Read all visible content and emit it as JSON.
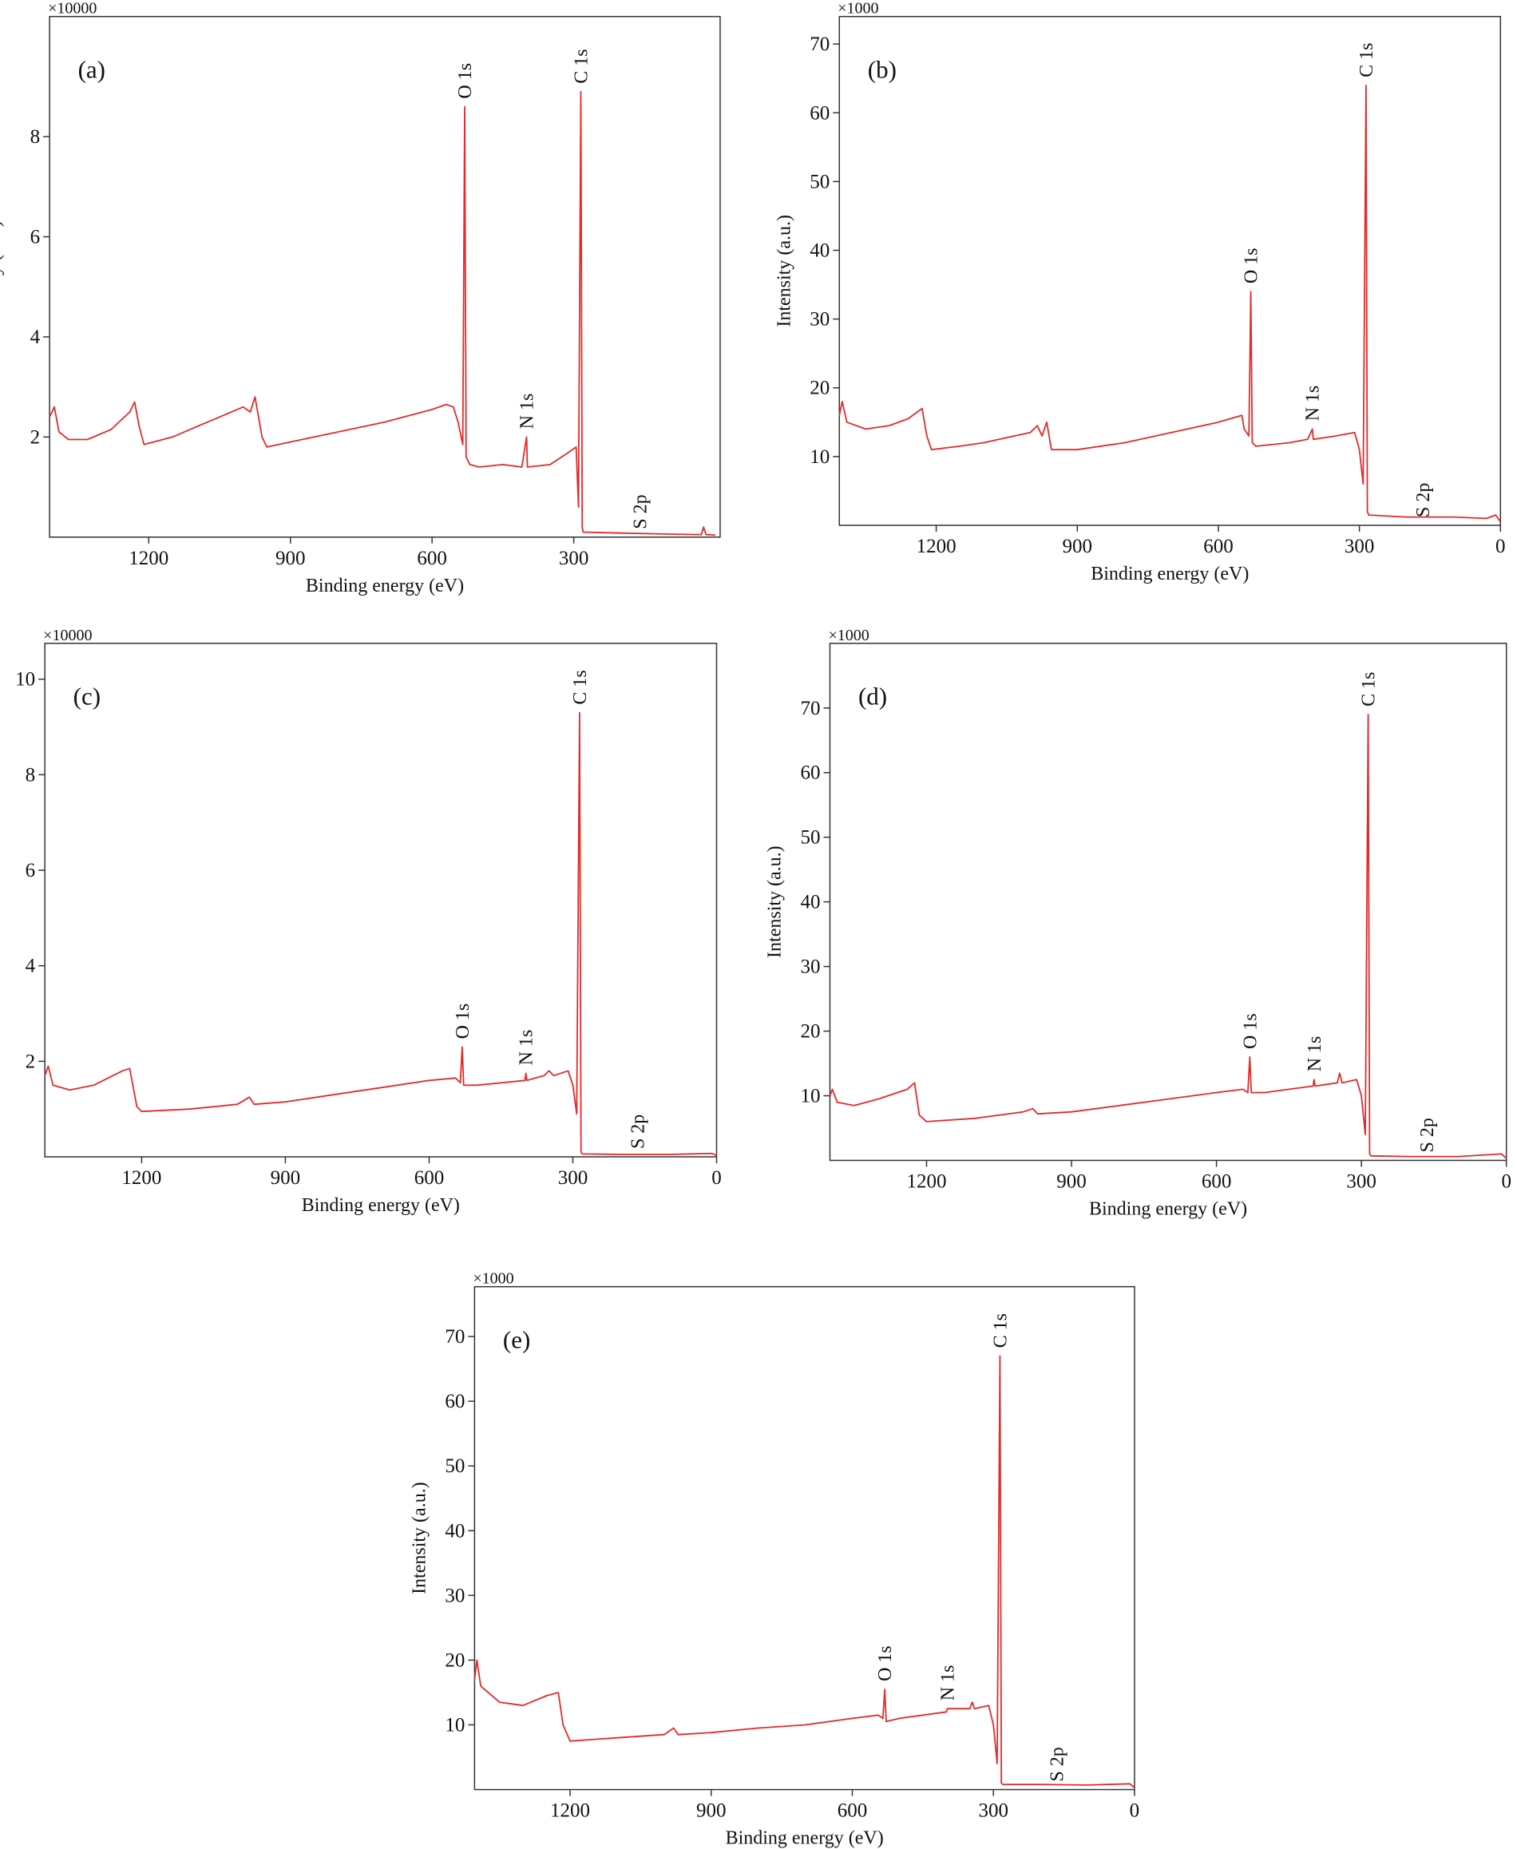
{
  "chart_data": [
    {
      "type": "line",
      "title": "(a)",
      "y_multiplier": "×10000",
      "xlabel": "Binding energy (eV)",
      "ylabel": "Intensity (a.u.)",
      "color": "#e42a2a",
      "xlim": [
        1410,
        -10
      ],
      "ylim": [
        0,
        10.4
      ],
      "xticks": [
        1200,
        900,
        600,
        300
      ],
      "yticks": [
        2,
        4,
        6,
        8
      ],
      "x": [
        1410,
        1400,
        1390,
        1370,
        1330,
        1280,
        1240,
        1230,
        1220,
        1210,
        1150,
        1100,
        1050,
        1000,
        985,
        975,
        960,
        950,
        900,
        800,
        700,
        600,
        570,
        555,
        545,
        535,
        531,
        528,
        520,
        500,
        450,
        410,
        400,
        398,
        350,
        310,
        295,
        290,
        285,
        282,
        280,
        200,
        100,
        30,
        25,
        20,
        0
      ],
      "values": [
        2.4,
        2.6,
        2.1,
        1.95,
        1.95,
        2.15,
        2.5,
        2.7,
        2.2,
        1.85,
        2.0,
        2.2,
        2.4,
        2.6,
        2.5,
        2.8,
        2.0,
        1.8,
        1.9,
        2.1,
        2.3,
        2.55,
        2.65,
        2.6,
        2.3,
        1.85,
        8.6,
        1.6,
        1.45,
        1.4,
        1.45,
        1.4,
        2.0,
        1.4,
        1.45,
        1.7,
        1.8,
        0.6,
        8.9,
        0.2,
        0.1,
        0.08,
        0.06,
        0.05,
        0.2,
        0.05,
        0.04
      ],
      "annotations": [
        {
          "text": "O 1s",
          "x": 531
        },
        {
          "text": "N 1s",
          "x": 400
        },
        {
          "text": "C 1s",
          "x": 285
        },
        {
          "text": "S 2p",
          "x": 160
        }
      ]
    },
    {
      "type": "line",
      "title": "(b)",
      "y_multiplier": "×1000",
      "xlabel": "Binding energy (eV)",
      "ylabel": "Intensity (a.u.)",
      "color": "#e42a2a",
      "xlim": [
        1406,
        0
      ],
      "ylim": [
        0,
        74
      ],
      "xticks": [
        1200,
        900,
        600,
        300,
        0
      ],
      "yticks": [
        10,
        20,
        30,
        40,
        50,
        60,
        70
      ],
      "x": [
        1406,
        1400,
        1390,
        1350,
        1300,
        1260,
        1230,
        1220,
        1210,
        1150,
        1100,
        1000,
        985,
        975,
        965,
        955,
        900,
        800,
        700,
        600,
        550,
        545,
        535,
        531,
        528,
        520,
        450,
        410,
        400,
        398,
        350,
        310,
        300,
        292,
        286,
        283,
        280,
        200,
        100,
        30,
        10,
        0
      ],
      "values": [
        16,
        18,
        15,
        14,
        14.5,
        15.5,
        17,
        13,
        11,
        11.5,
        12,
        13.5,
        14.5,
        13,
        15,
        11,
        11,
        12,
        13.5,
        15,
        16,
        14,
        13,
        34,
        12,
        11.5,
        12,
        12.5,
        14,
        12.5,
        13,
        13.5,
        11,
        6,
        64,
        2,
        1.5,
        1.2,
        1.2,
        1,
        1.5,
        0.5
      ],
      "annotations": [
        {
          "text": "O 1s",
          "x": 531
        },
        {
          "text": "N 1s",
          "x": 400
        },
        {
          "text": "C 1s",
          "x": 286
        },
        {
          "text": "S 2p",
          "x": 165
        }
      ]
    },
    {
      "type": "line",
      "title": "(c)",
      "y_multiplier": "×10000",
      "xlabel": "Binding energy (eV)",
      "ylabel": "Intensity (a.u.)",
      "color": "#e42a2a",
      "xlim": [
        1402,
        0
      ],
      "ylim": [
        0,
        10.75
      ],
      "xticks": [
        1200,
        900,
        600,
        300,
        0
      ],
      "yticks": [
        2,
        4,
        6,
        8,
        10
      ],
      "x": [
        1402,
        1395,
        1385,
        1350,
        1300,
        1240,
        1225,
        1210,
        1200,
        1100,
        1000,
        975,
        965,
        900,
        800,
        700,
        600,
        545,
        535,
        531,
        528,
        500,
        450,
        400,
        398,
        396,
        360,
        350,
        340,
        310,
        300,
        292,
        286,
        283,
        280,
        200,
        100,
        10,
        0
      ],
      "values": [
        1.7,
        1.9,
        1.5,
        1.4,
        1.5,
        1.8,
        1.85,
        1.05,
        0.95,
        1.0,
        1.1,
        1.25,
        1.1,
        1.15,
        1.3,
        1.45,
        1.6,
        1.65,
        1.55,
        2.3,
        1.5,
        1.5,
        1.55,
        1.6,
        1.75,
        1.6,
        1.7,
        1.8,
        1.7,
        1.8,
        1.5,
        0.9,
        9.3,
        0.1,
        0.06,
        0.05,
        0.05,
        0.07,
        0.03
      ],
      "annotations": [
        {
          "text": "O 1s",
          "x": 531
        },
        {
          "text": "N 1s",
          "x": 398
        },
        {
          "text": "C 1s",
          "x": 286
        },
        {
          "text": "S 2p",
          "x": 165
        }
      ]
    },
    {
      "type": "line",
      "title": "(d)",
      "y_multiplier": "×1000",
      "xlabel": "Binding energy (eV)",
      "ylabel": "Intensity (a.u.)",
      "color": "#e42a2a",
      "xlim": [
        1400,
        0
      ],
      "ylim": [
        0,
        80
      ],
      "xticks": [
        1200,
        900,
        600,
        300,
        0
      ],
      "yticks": [
        10,
        20,
        30,
        40,
        50,
        60,
        70
      ],
      "x": [
        1400,
        1395,
        1385,
        1350,
        1300,
        1240,
        1225,
        1215,
        1200,
        1100,
        1000,
        980,
        970,
        900,
        800,
        700,
        600,
        545,
        535,
        531,
        528,
        500,
        450,
        400,
        398,
        396,
        350,
        345,
        340,
        310,
        300,
        292,
        286,
        283,
        280,
        200,
        100,
        10,
        0
      ],
      "values": [
        10,
        11,
        9,
        8.5,
        9.5,
        11,
        12,
        7,
        6,
        6.5,
        7.5,
        8,
        7.2,
        7.5,
        8.5,
        9.5,
        10.5,
        11,
        10.5,
        16,
        10.5,
        10.5,
        11,
        11.5,
        12.5,
        11.5,
        12,
        13.5,
        12,
        12.5,
        10,
        4,
        69,
        1,
        0.7,
        0.6,
        0.6,
        1,
        0.3
      ],
      "annotations": [
        {
          "text": "O 1s",
          "x": 531
        },
        {
          "text": "N 1s",
          "x": 398
        },
        {
          "text": "C 1s",
          "x": 286
        },
        {
          "text": "S 2p",
          "x": 165
        }
      ]
    },
    {
      "type": "line",
      "title": "(e)",
      "y_multiplier": "×1000",
      "xlabel": "Binding energy (eV)",
      "ylabel": "Intensity (a.u.)",
      "color": "#e42a2a",
      "xlim": [
        1403,
        0
      ],
      "ylim": [
        0,
        77.7
      ],
      "xticks": [
        1200,
        900,
        600,
        300,
        0
      ],
      "yticks": [
        10,
        20,
        30,
        40,
        50,
        60,
        70
      ],
      "x": [
        1403,
        1398,
        1390,
        1350,
        1300,
        1250,
        1225,
        1215,
        1200,
        1100,
        1000,
        980,
        970,
        900,
        800,
        700,
        600,
        545,
        535,
        531,
        528,
        500,
        450,
        400,
        398,
        350,
        345,
        340,
        310,
        300,
        292,
        286,
        283,
        280,
        200,
        100,
        10,
        0
      ],
      "values": [
        17,
        20,
        16,
        13.5,
        13,
        14.5,
        15,
        10,
        7.5,
        8,
        8.5,
        9.5,
        8.5,
        8.8,
        9.5,
        10,
        11,
        11.5,
        11,
        15.5,
        10.5,
        11,
        11.5,
        12,
        12.5,
        12.5,
        13.5,
        12.5,
        13,
        10,
        4,
        67,
        1,
        0.8,
        0.8,
        0.7,
        0.9,
        0.3
      ],
      "annotations": [
        {
          "text": "O 1s",
          "x": 531
        },
        {
          "text": "N 1s",
          "x": 398
        },
        {
          "text": "C 1s",
          "x": 286
        },
        {
          "text": "S 2p",
          "x": 165
        }
      ]
    }
  ]
}
